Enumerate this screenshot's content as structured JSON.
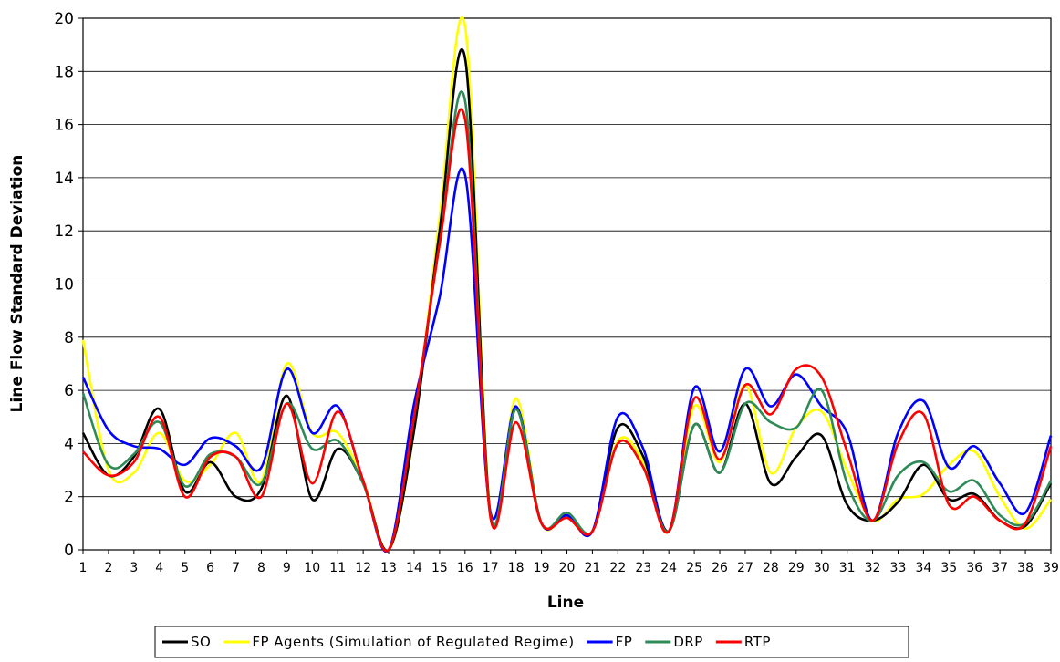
{
  "chart_data": {
    "type": "line",
    "title": "",
    "xlabel": "Line",
    "ylabel": "Line Flow Standard Deviation",
    "x": [
      1,
      2,
      3,
      4,
      5,
      6,
      7,
      8,
      9,
      10,
      11,
      12,
      13,
      14,
      15,
      16,
      17,
      18,
      19,
      20,
      21,
      22,
      23,
      24,
      25,
      26,
      27,
      28,
      29,
      30,
      31,
      32,
      33,
      34,
      35,
      36,
      37,
      38,
      39
    ],
    "xlim": [
      1,
      39
    ],
    "ylim": [
      0,
      20
    ],
    "yticks": [
      0,
      2,
      4,
      6,
      8,
      10,
      12,
      14,
      16,
      18,
      20
    ],
    "grid": "horizontal",
    "legend_position": "bottom",
    "series": [
      {
        "name": "SO",
        "color": "#000000",
        "values": [
          4.4,
          2.8,
          3.5,
          5.3,
          2.2,
          3.3,
          2.0,
          2.3,
          5.8,
          1.9,
          3.8,
          2.5,
          0,
          4.5,
          12.0,
          18.5,
          1.3,
          5.3,
          1.0,
          1.3,
          0.7,
          4.6,
          3.5,
          0.7,
          4.7,
          2.9,
          5.5,
          2.5,
          3.5,
          4.3,
          1.7,
          1.1,
          1.8,
          3.2,
          1.9,
          2.1,
          1.1,
          0.9,
          2.5
        ]
      },
      {
        "name": "FP Agents (Simulation of Regulated Regime)",
        "color": "#ffff00",
        "values": [
          7.9,
          3.0,
          2.9,
          4.4,
          2.6,
          3.2,
          4.4,
          2.6,
          7.0,
          4.4,
          4.4,
          2.6,
          0,
          4.5,
          12.5,
          19.7,
          1.3,
          5.7,
          1.0,
          1.3,
          0.7,
          4.1,
          3.3,
          0.7,
          5.4,
          3.3,
          6.2,
          2.9,
          4.6,
          5.2,
          3.0,
          1.1,
          1.9,
          2.1,
          3.2,
          3.7,
          2.0,
          0.8,
          1.9
        ]
      },
      {
        "name": "FP",
        "color": "#0000ff",
        "values": [
          6.5,
          4.5,
          3.9,
          3.8,
          3.2,
          4.2,
          3.9,
          3.1,
          6.8,
          4.4,
          5.4,
          2.6,
          0,
          5.5,
          9.5,
          14.1,
          1.4,
          5.4,
          1.0,
          1.3,
          0.7,
          5.0,
          3.8,
          0.7,
          6.1,
          3.7,
          6.8,
          5.4,
          6.6,
          5.4,
          4.4,
          1.1,
          4.4,
          5.6,
          3.1,
          3.9,
          2.5,
          1.4,
          4.3
        ]
      },
      {
        "name": "DRP",
        "color": "#2e8b57",
        "values": [
          5.9,
          3.2,
          3.6,
          4.8,
          2.4,
          3.6,
          3.5,
          2.5,
          5.5,
          3.8,
          4.1,
          2.5,
          0,
          5.0,
          11.5,
          16.9,
          1.3,
          5.3,
          1.0,
          1.4,
          0.7,
          4.0,
          3.1,
          0.7,
          4.7,
          2.9,
          5.5,
          4.8,
          4.6,
          6.0,
          2.5,
          1.1,
          2.8,
          3.3,
          2.2,
          2.6,
          1.3,
          1.0,
          2.6
        ]
      },
      {
        "name": "RTP",
        "color": "#ff0000",
        "values": [
          3.7,
          2.8,
          3.3,
          5.0,
          2.0,
          3.5,
          3.5,
          2.0,
          5.5,
          2.5,
          5.2,
          2.6,
          0,
          5.0,
          11.5,
          16.2,
          1.2,
          4.8,
          1.0,
          1.2,
          0.7,
          4.0,
          3.1,
          0.7,
          5.7,
          3.4,
          6.2,
          5.1,
          6.8,
          6.5,
          3.7,
          1.1,
          4.0,
          5.1,
          1.7,
          2.0,
          1.1,
          1.0,
          3.9
        ]
      }
    ]
  }
}
